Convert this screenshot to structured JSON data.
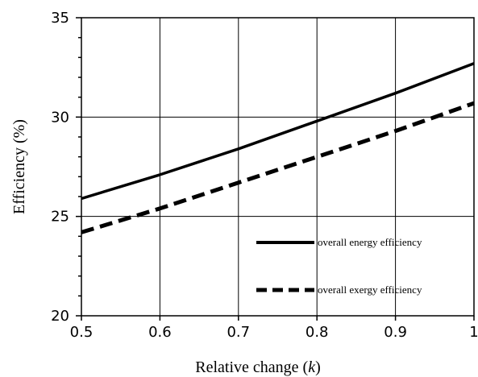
{
  "chart_data": {
    "type": "line",
    "title": "",
    "xlabel": "Relative change (",
    "xlabel_var": "k",
    "xlabel_close": ")",
    "ylabel": "Efficiency  (%)",
    "xlim": [
      0.5,
      1.0
    ],
    "ylim": [
      20,
      35
    ],
    "x_ticks": [
      "0.5",
      "0.6",
      "0.7",
      "0.8",
      "0.9",
      "1"
    ],
    "y_ticks": [
      "20",
      "25",
      "30",
      "35"
    ],
    "grid": true,
    "legend_position": "bottom-right",
    "series": [
      {
        "name": "overall energy efficiency",
        "style": "solid",
        "color": "#000000",
        "x": [
          0.5,
          0.6,
          0.7,
          0.8,
          0.9,
          1.0
        ],
        "y": [
          25.9,
          27.1,
          28.4,
          29.8,
          31.2,
          32.7
        ]
      },
      {
        "name": "overall exergy efficiency",
        "style": "dashed",
        "color": "#000000",
        "x": [
          0.5,
          0.6,
          0.7,
          0.8,
          0.9,
          1.0
        ],
        "y": [
          24.2,
          25.4,
          26.7,
          28.0,
          29.3,
          30.7
        ]
      }
    ]
  }
}
